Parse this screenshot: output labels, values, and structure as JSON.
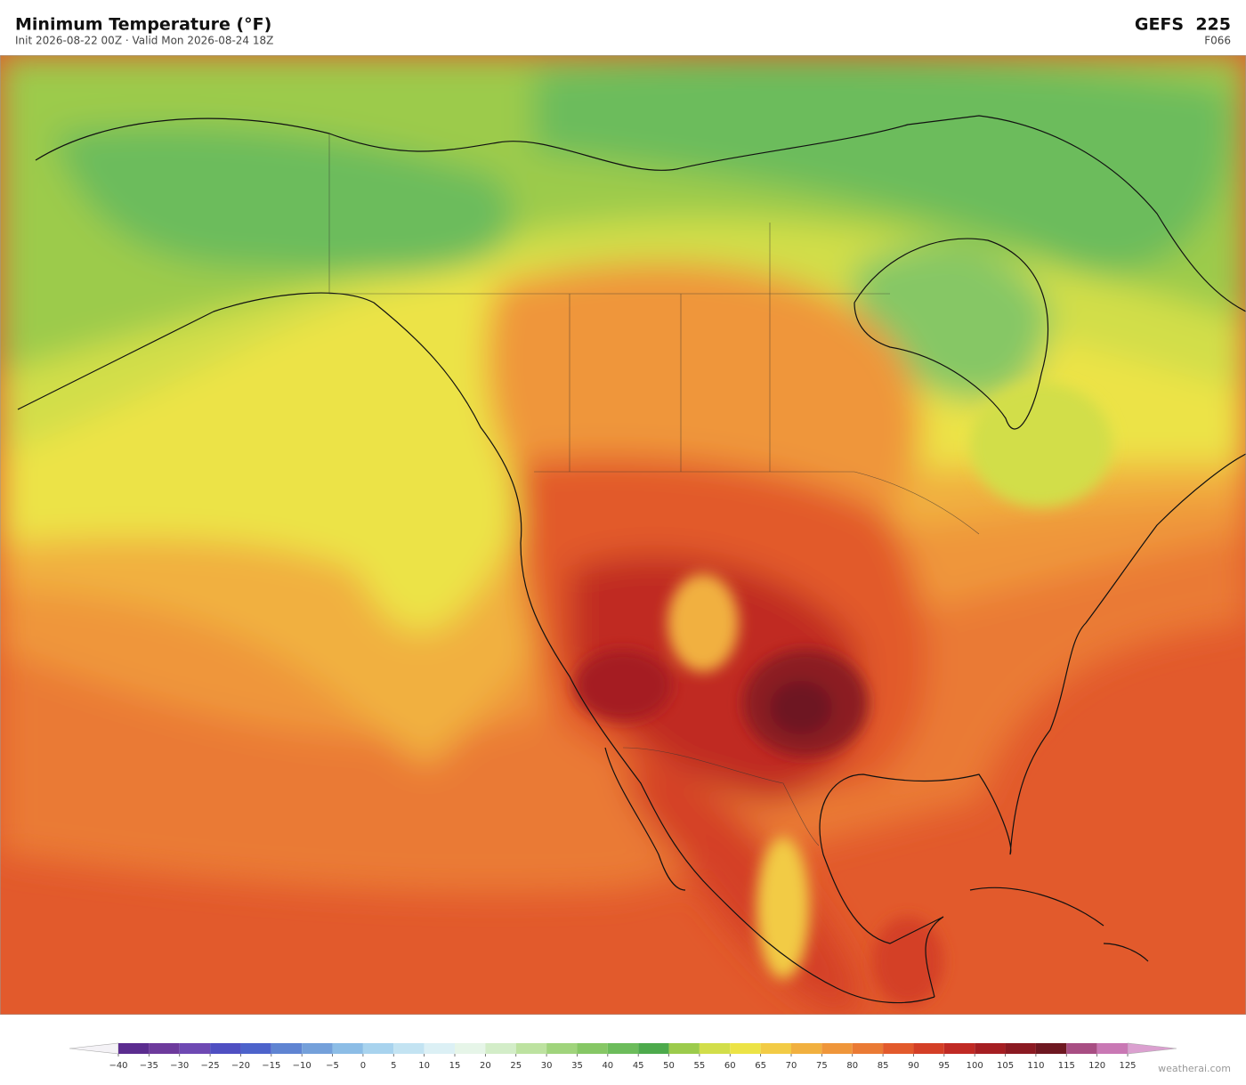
{
  "header": {
    "title": "Minimum Temperature  (°F)",
    "subtitle": "Init 2026-08-22 00Z   ·   Valid Mon 2026-08-24 18Z",
    "model": "GEFS  225",
    "forecast_hour": "F066"
  },
  "colorbar": {
    "ticks": [
      {
        "value": -40,
        "label": "−40"
      },
      {
        "value": -35,
        "label": "−35"
      },
      {
        "value": -30,
        "label": "−30"
      },
      {
        "value": -25,
        "label": "−25"
      },
      {
        "value": -20,
        "label": "−20"
      },
      {
        "value": -15,
        "label": "−15"
      },
      {
        "value": -10,
        "label": "−10"
      },
      {
        "value": -5,
        "label": "−5"
      },
      0,
      5,
      10,
      15,
      20,
      25,
      30,
      35,
      40,
      45,
      50,
      55,
      60,
      65,
      70,
      75,
      80,
      85,
      90,
      95,
      100,
      105,
      110,
      115,
      120,
      125
    ],
    "colors": [
      "#5b2c8f",
      "#6d3a9c",
      "#6e49b3",
      "#4f4fc2",
      "#4d63cb",
      "#5f84d2",
      "#74a0da",
      "#8cbde6",
      "#a8d3ee",
      "#c3e3f2",
      "#dcf0f5",
      "#e6f5e8",
      "#d3edc8",
      "#bde2a0",
      "#a0d47c",
      "#86c765",
      "#6cbc5b",
      "#4daa4c",
      "#9ccb4c",
      "#d2de4a",
      "#ece346",
      "#f2cb45",
      "#f1b03f",
      "#ef963a",
      "#ea7a34",
      "#e25a2c",
      "#d43f26",
      "#c02a24",
      "#a51e22",
      "#8b1a22",
      "#6e1821",
      "#a84e83",
      "#c978b4"
    ],
    "under_color": "#f4f2f6",
    "over_color": "#dba0d0"
  },
  "footer": {
    "credit": "weatherai.com"
  }
}
